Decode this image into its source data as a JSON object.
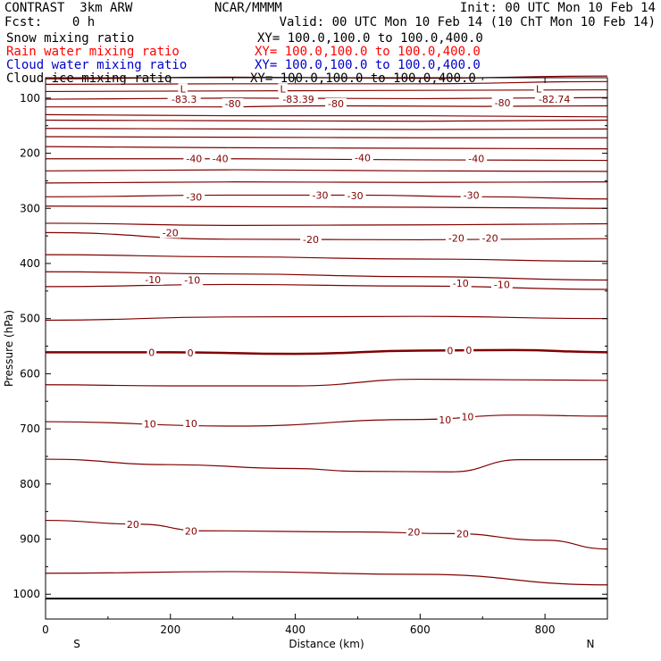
{
  "header": {
    "model": "CONTRAST  3km ARW",
    "org": "NCAR/MMMM",
    "init": "Init: 00 UTC Mon 10 Feb 14",
    "fcst": "Fcst:    0 h",
    "valid": "Valid: 00 UTC Mon 10 Feb 14 (10 ChT Mon 10 Feb 14)",
    "fields": [
      {
        "label": "Snow mixing ratio",
        "xy": "XY= 100.0,100.0 to 100.0,400.0",
        "color": "#000000"
      },
      {
        "label": "Rain water mixing ratio",
        "xy": "XY= 100.0,100.0 to 100.0,400.0",
        "color": "#ff0000"
      },
      {
        "label": "Cloud water mixing ratio",
        "xy": "XY= 100.0,100.0 to 100.0,400.0",
        "color": "#0000cc"
      },
      {
        "label": "Cloud ice mixing ratio",
        "xy": "XY= 100.0,100.0 to 100.0,400.0",
        "color": "#000000"
      }
    ]
  },
  "chart_data": {
    "type": "line",
    "xlabel": "Distance (km)",
    "ylabel": "Pressure (hPa)",
    "xlim": [
      0,
      900
    ],
    "ylim": [
      1045,
      63
    ],
    "x_ticks": [
      0,
      200,
      400,
      600,
      800
    ],
    "y_ticks": [
      100,
      200,
      300,
      400,
      500,
      600,
      700,
      800,
      900,
      1000
    ],
    "x_end_labels": [
      "S",
      "N"
    ],
    "contour_color": "#800000",
    "ground_line_hpa": 1008,
    "series": [
      {
        "values": [
          [
            0,
            65
          ],
          [
            300,
            62
          ],
          [
            600,
            64
          ],
          [
            900,
            60
          ]
        ]
      },
      {
        "values": [
          [
            0,
            75
          ],
          [
            300,
            74
          ],
          [
            600,
            74
          ],
          [
            900,
            70
          ]
        ]
      },
      {
        "values": [
          [
            0,
            88
          ],
          [
            900,
            85
          ]
        ]
      },
      {
        "values": [
          [
            0,
            102
          ],
          [
            300,
            100
          ],
          [
            600,
            101
          ],
          [
            900,
            99
          ]
        ]
      },
      {
        "values": [
          [
            0,
            116
          ],
          [
            250,
            116
          ],
          [
            450,
            114
          ],
          [
            700,
            115
          ],
          [
            900,
            114
          ]
        ]
      },
      {
        "values": [
          [
            0,
            130
          ],
          [
            300,
            132
          ],
          [
            600,
            132
          ],
          [
            900,
            134
          ]
        ]
      },
      {
        "values": [
          [
            0,
            140
          ],
          [
            300,
            141
          ],
          [
            600,
            142
          ],
          [
            900,
            140
          ]
        ]
      },
      {
        "values": [
          [
            0,
            155
          ],
          [
            300,
            156
          ],
          [
            600,
            157
          ],
          [
            900,
            156
          ]
        ]
      },
      {
        "values": [
          [
            0,
            170
          ],
          [
            300,
            171
          ],
          [
            600,
            172
          ],
          [
            900,
            172
          ]
        ]
      },
      {
        "values": [
          [
            0,
            188
          ],
          [
            300,
            190
          ],
          [
            600,
            191
          ],
          [
            900,
            192
          ]
        ]
      },
      {
        "values": [
          [
            0,
            210
          ],
          [
            300,
            210
          ],
          [
            600,
            212
          ],
          [
            900,
            213
          ]
        ]
      },
      {
        "values": [
          [
            0,
            232
          ],
          [
            300,
            230
          ],
          [
            600,
            232
          ],
          [
            900,
            233
          ]
        ]
      },
      {
        "values": [
          [
            0,
            254
          ],
          [
            300,
            252
          ],
          [
            600,
            253
          ],
          [
            900,
            252
          ]
        ]
      },
      {
        "values": [
          [
            0,
            279
          ],
          [
            300,
            276
          ],
          [
            500,
            276
          ],
          [
            700,
            279
          ],
          [
            900,
            283
          ]
        ]
      },
      {
        "values": [
          [
            0,
            296
          ],
          [
            300,
            297
          ],
          [
            600,
            298
          ],
          [
            900,
            300
          ]
        ]
      },
      {
        "values": [
          [
            0,
            327
          ],
          [
            300,
            331
          ],
          [
            600,
            330
          ],
          [
            900,
            328
          ]
        ]
      },
      {
        "values": [
          [
            0,
            344
          ],
          [
            300,
            356
          ],
          [
            600,
            357
          ],
          [
            900,
            355
          ]
        ]
      },
      {
        "values": [
          [
            0,
            384
          ],
          [
            300,
            388
          ],
          [
            600,
            392
          ],
          [
            900,
            396
          ]
        ]
      },
      {
        "values": [
          [
            0,
            415
          ],
          [
            300,
            419
          ],
          [
            600,
            424
          ],
          [
            900,
            430
          ]
        ]
      },
      {
        "values": [
          [
            0,
            442
          ],
          [
            300,
            438
          ],
          [
            600,
            441
          ],
          [
            900,
            447
          ]
        ]
      },
      {
        "values": [
          [
            0,
            503
          ],
          [
            300,
            497
          ],
          [
            600,
            496
          ],
          [
            900,
            500
          ]
        ]
      },
      {
        "values": [
          [
            0,
            561
          ],
          [
            200,
            561
          ],
          [
            400,
            564
          ],
          [
            600,
            558
          ],
          [
            750,
            557
          ],
          [
            900,
            561
          ]
        ]
      },
      {
        "values": [
          [
            0,
            620
          ],
          [
            200,
            622
          ],
          [
            400,
            622
          ],
          [
            600,
            610
          ],
          [
            900,
            612
          ]
        ]
      },
      {
        "values": [
          [
            0,
            687
          ],
          [
            300,
            695
          ],
          [
            600,
            683
          ],
          [
            750,
            675
          ],
          [
            900,
            677
          ]
        ]
      },
      {
        "values": [
          [
            0,
            755
          ],
          [
            200,
            765
          ],
          [
            400,
            772
          ],
          [
            500,
            777
          ],
          [
            650,
            778
          ],
          [
            760,
            756
          ],
          [
            900,
            756
          ]
        ]
      },
      {
        "values": [
          [
            0,
            866
          ],
          [
            150,
            873
          ],
          [
            250,
            885
          ],
          [
            500,
            887
          ],
          [
            650,
            890
          ],
          [
            800,
            902
          ],
          [
            900,
            918
          ]
        ]
      },
      {
        "values": [
          [
            0,
            962
          ],
          [
            300,
            959
          ],
          [
            600,
            964
          ],
          [
            900,
            983
          ]
        ]
      }
    ],
    "annotations": [
      {
        "text": "L",
        "x": 220,
        "y": 83
      },
      {
        "text": "L",
        "x": 380,
        "y": 83
      },
      {
        "text": "L",
        "x": 790,
        "y": 83
      },
      {
        "text": "-83.3",
        "x": 222,
        "y": 102
      },
      {
        "text": "-80",
        "x": 300,
        "y": 110
      },
      {
        "text": "-83.39",
        "x": 405,
        "y": 102
      },
      {
        "text": "-80",
        "x": 465,
        "y": 110
      },
      {
        "text": "-80",
        "x": 732,
        "y": 108
      },
      {
        "text": "-82.74",
        "x": 815,
        "y": 102
      },
      {
        "text": "-40",
        "x": 238,
        "y": 210
      },
      {
        "text": "-40",
        "x": 280,
        "y": 210
      },
      {
        "text": "-40",
        "x": 508,
        "y": 208
      },
      {
        "text": "-40",
        "x": 690,
        "y": 210
      },
      {
        "text": "-30",
        "x": 238,
        "y": 279
      },
      {
        "text": "-30",
        "x": 440,
        "y": 276
      },
      {
        "text": "-30",
        "x": 496,
        "y": 277
      },
      {
        "text": "-30",
        "x": 682,
        "y": 276
      },
      {
        "text": "-20",
        "x": 200,
        "y": 344
      },
      {
        "text": "-20",
        "x": 425,
        "y": 356
      },
      {
        "text": "-20",
        "x": 658,
        "y": 354
      },
      {
        "text": "-20",
        "x": 712,
        "y": 354
      },
      {
        "text": "-10",
        "x": 172,
        "y": 429
      },
      {
        "text": "-10",
        "x": 235,
        "y": 430
      },
      {
        "text": "-10",
        "x": 665,
        "y": 436
      },
      {
        "text": "-10",
        "x": 731,
        "y": 438
      },
      {
        "text": "0",
        "x": 170,
        "y": 561
      },
      {
        "text": "0",
        "x": 232,
        "y": 562
      },
      {
        "text": "0",
        "x": 648,
        "y": 558
      },
      {
        "text": "0",
        "x": 678,
        "y": 557
      },
      {
        "text": "10",
        "x": 167,
        "y": 691
      },
      {
        "text": "10",
        "x": 233,
        "y": 690
      },
      {
        "text": "10",
        "x": 640,
        "y": 684
      },
      {
        "text": "10",
        "x": 676,
        "y": 678
      },
      {
        "text": "20",
        "x": 140,
        "y": 873
      },
      {
        "text": "20",
        "x": 233,
        "y": 885
      },
      {
        "text": "20",
        "x": 590,
        "y": 887
      },
      {
        "text": "20",
        "x": 668,
        "y": 890
      }
    ]
  }
}
